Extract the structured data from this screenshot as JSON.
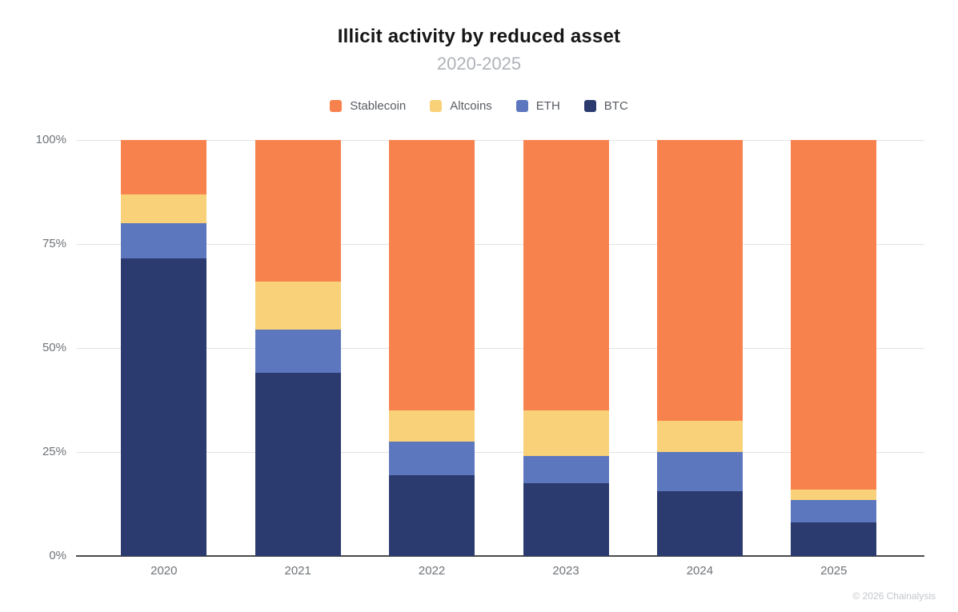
{
  "header": {
    "title": "Illicit activity by reduced asset",
    "subtitle": "2020-2025"
  },
  "footer": {
    "attribution": "© 2026 Chainalysis"
  },
  "chart_data": {
    "type": "bar",
    "stacked": true,
    "normalized_percent": true,
    "title": "Illicit activity by reduced asset",
    "subtitle": "2020-2025",
    "categories": [
      "2020",
      "2021",
      "2022",
      "2023",
      "2024",
      "2025"
    ],
    "series": [
      {
        "name": "BTC",
        "color": "#2B3B6F",
        "values": [
          71.5,
          44.0,
          19.5,
          17.5,
          15.5,
          8.0
        ]
      },
      {
        "name": "ETH",
        "color": "#5C77BD",
        "values": [
          8.5,
          10.5,
          8.0,
          6.5,
          9.5,
          5.5
        ]
      },
      {
        "name": "Altcoins",
        "color": "#F8D178",
        "values": [
          7.0,
          11.5,
          7.5,
          11.0,
          7.5,
          2.5
        ]
      },
      {
        "name": "Stablecoin",
        "color": "#F8824E",
        "values": [
          13.0,
          34.0,
          65.0,
          65.0,
          67.5,
          84.0
        ]
      }
    ],
    "legend_order": [
      "Stablecoin",
      "Altcoins",
      "ETH",
      "BTC"
    ],
    "legend_position": "top",
    "ylabel": "",
    "xlabel": "",
    "ylim": [
      0,
      100
    ],
    "yticks": [
      "0%",
      "25%",
      "50%",
      "75%",
      "100%"
    ],
    "ytick_values": [
      0,
      25,
      50,
      75,
      100
    ],
    "grid": true
  }
}
